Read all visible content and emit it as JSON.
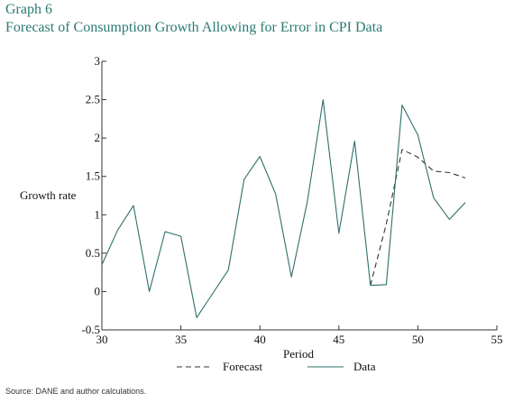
{
  "header": {
    "graph_number": "Graph 6",
    "title": "Forecast of Consumption Growth Allowing for Error in CPI Data"
  },
  "footer": {
    "source": "Source: DANE and author calculations."
  },
  "colors": {
    "title": "#2a7a72",
    "data_line": "#2e6f6a",
    "forecast_line": "#333333",
    "axis": "#333333"
  },
  "chart_data": {
    "type": "line",
    "xlabel": "Period",
    "ylabel": "Growth rate",
    "xlim": [
      30,
      55
    ],
    "ylim": [
      -0.5,
      3
    ],
    "xticks": [
      30,
      35,
      40,
      45,
      50,
      55
    ],
    "yticks": [
      -0.5,
      0,
      0.5,
      1,
      1.5,
      2,
      2.5,
      3
    ],
    "xtick_labels": [
      "30",
      "35",
      "40",
      "45",
      "50",
      "55"
    ],
    "ytick_labels": [
      "-0.5",
      "0",
      "0.5",
      "1",
      "1.5",
      "2",
      "2.5",
      "3"
    ],
    "grid": false,
    "legend_position": "bottom",
    "series": [
      {
        "name": "Forecast",
        "style": "dashed",
        "x": [
          47,
          48,
          49,
          50,
          51,
          52,
          53
        ],
        "y": [
          0.08,
          0.88,
          1.85,
          1.75,
          1.57,
          1.55,
          1.48
        ]
      },
      {
        "name": "Data",
        "style": "solid",
        "x": [
          30,
          31,
          32,
          33,
          34,
          35,
          36,
          37,
          38,
          39,
          40,
          41,
          42,
          43,
          44,
          45,
          46,
          47,
          48,
          49,
          50,
          51,
          52,
          53
        ],
        "y": [
          0.35,
          0.8,
          1.12,
          0.0,
          0.78,
          0.72,
          -0.34,
          -0.03,
          0.28,
          1.46,
          1.76,
          1.27,
          0.19,
          1.17,
          2.5,
          0.76,
          1.96,
          0.08,
          0.09,
          2.43,
          2.04,
          1.22,
          0.94,
          1.16
        ]
      }
    ]
  }
}
